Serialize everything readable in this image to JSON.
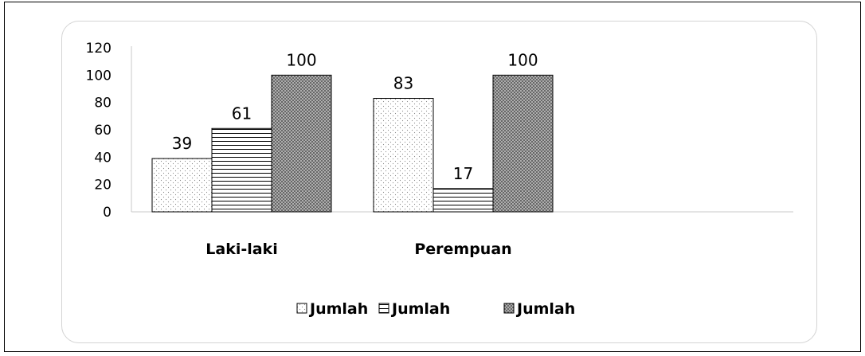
{
  "chart_data": {
    "type": "bar",
    "categories": [
      "Laki-laki",
      "Perempuan"
    ],
    "series": [
      {
        "name": "Jumlah",
        "values": [
          39,
          83
        ],
        "pattern": "dots"
      },
      {
        "name": "Jumlah",
        "values": [
          61,
          17
        ],
        "pattern": "hlines"
      },
      {
        "name": "Jumlah",
        "values": [
          100,
          100
        ],
        "pattern": "crosshatch"
      }
    ],
    "ylim": [
      0,
      120
    ],
    "yticks": [
      0,
      20,
      40,
      60,
      80,
      100,
      120
    ],
    "grid": false,
    "legend_position": "bottom"
  }
}
